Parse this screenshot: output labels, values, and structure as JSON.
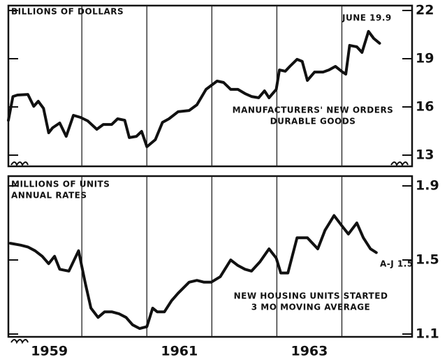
{
  "chart_data": [
    {
      "type": "line",
      "y_label": "BILLIONS OF DOLLARS",
      "annotations": [
        "JUNE 19.9",
        "MANUFACTURERS' NEW ORDERS",
        "DURABLE GOODS"
      ],
      "xlim": [
        1958.87,
        1965.08
      ],
      "xgrid": [
        1960,
        1961,
        1962,
        1963,
        1964
      ],
      "ylim": [
        13,
        22
      ],
      "yticks": [
        13,
        16,
        19,
        22
      ],
      "series": [
        {
          "name": "MANUFACTURERS' NEW ORDERS",
          "color": "#111111",
          "x": [
            1958.87,
            1958.94,
            1959.01,
            1959.17,
            1959.26,
            1959.33,
            1959.41,
            1959.49,
            1959.55,
            1959.66,
            1959.76,
            1959.87,
            1959.98,
            1960.09,
            1960.23,
            1960.33,
            1960.46,
            1960.55,
            1960.66,
            1960.73,
            1960.84,
            1960.92,
            1961.0,
            1961.13,
            1961.24,
            1961.34,
            1961.48,
            1961.65,
            1961.77,
            1961.91,
            1962.08,
            1962.18,
            1962.29,
            1962.4,
            1962.51,
            1962.61,
            1962.72,
            1962.81,
            1962.88,
            1962.99,
            1963.04,
            1963.13,
            1963.2,
            1963.31,
            1963.39,
            1963.47,
            1963.58,
            1963.71,
            1963.8,
            1963.9,
            1964.01,
            1964.06,
            1964.12,
            1964.23,
            1964.31,
            1964.41,
            1964.49,
            1964.58
          ],
          "values": [
            15.17,
            16.65,
            16.74,
            16.78,
            16.04,
            16.35,
            15.91,
            14.39,
            14.7,
            15.0,
            14.17,
            15.48,
            15.35,
            15.13,
            14.61,
            14.91,
            14.91,
            15.26,
            15.17,
            14.09,
            14.17,
            14.48,
            13.52,
            13.96,
            15.04,
            15.26,
            15.7,
            15.78,
            16.13,
            17.09,
            17.61,
            17.52,
            17.09,
            17.09,
            16.83,
            16.65,
            16.57,
            17.0,
            16.57,
            17.09,
            18.3,
            18.22,
            18.52,
            18.96,
            18.83,
            17.65,
            18.17,
            18.17,
            18.3,
            18.52,
            18.17,
            18.04,
            19.83,
            19.74,
            19.39,
            20.7,
            20.26,
            19.96
          ]
        }
      ]
    },
    {
      "type": "line",
      "y_label": "MILLIONS OF UNITS",
      "y_label_2": "ANNUAL RATES",
      "annotations": [
        "A-J 1.5",
        "NEW HOUSING UNITS STARTED",
        "3 MO MOVING AVERAGE"
      ],
      "xlim": [
        1958.87,
        1965.08
      ],
      "xgrid": [
        1960,
        1961,
        1962,
        1963,
        1964
      ],
      "xticks": [
        {
          "value": 1959.5,
          "label": "1959"
        },
        {
          "value": 1961.5,
          "label": "1961"
        },
        {
          "value": 1963.5,
          "label": "1963"
        }
      ],
      "ylim": [
        1.1,
        1.9
      ],
      "yticks": [
        1.1,
        1.5,
        1.9
      ],
      "series": [
        {
          "name": "NEW HOUSING UNITS STARTED",
          "color": "#111111",
          "x": [
            1958.9,
            1959.06,
            1959.17,
            1959.28,
            1959.39,
            1959.49,
            1959.58,
            1959.66,
            1959.8,
            1959.95,
            1960.05,
            1960.14,
            1960.25,
            1960.35,
            1960.46,
            1960.57,
            1960.68,
            1960.78,
            1960.89,
            1961.0,
            1961.09,
            1961.16,
            1961.27,
            1961.38,
            1961.48,
            1961.65,
            1961.77,
            1961.88,
            1961.99,
            1962.13,
            1962.29,
            1962.4,
            1962.51,
            1962.61,
            1962.74,
            1962.88,
            1962.99,
            1963.06,
            1963.17,
            1963.31,
            1963.47,
            1963.63,
            1963.74,
            1963.88,
            1964.01,
            1964.1,
            1964.23,
            1964.33,
            1964.44,
            1964.53
          ],
          "values": [
            1.59,
            1.58,
            1.57,
            1.55,
            1.52,
            1.48,
            1.52,
            1.45,
            1.44,
            1.55,
            1.38,
            1.24,
            1.19,
            1.22,
            1.22,
            1.21,
            1.19,
            1.15,
            1.13,
            1.14,
            1.24,
            1.22,
            1.22,
            1.28,
            1.32,
            1.38,
            1.39,
            1.38,
            1.38,
            1.41,
            1.5,
            1.47,
            1.45,
            1.44,
            1.49,
            1.56,
            1.51,
            1.43,
            1.43,
            1.62,
            1.62,
            1.56,
            1.66,
            1.74,
            1.68,
            1.64,
            1.7,
            1.62,
            1.56,
            1.54
          ]
        }
      ]
    }
  ]
}
